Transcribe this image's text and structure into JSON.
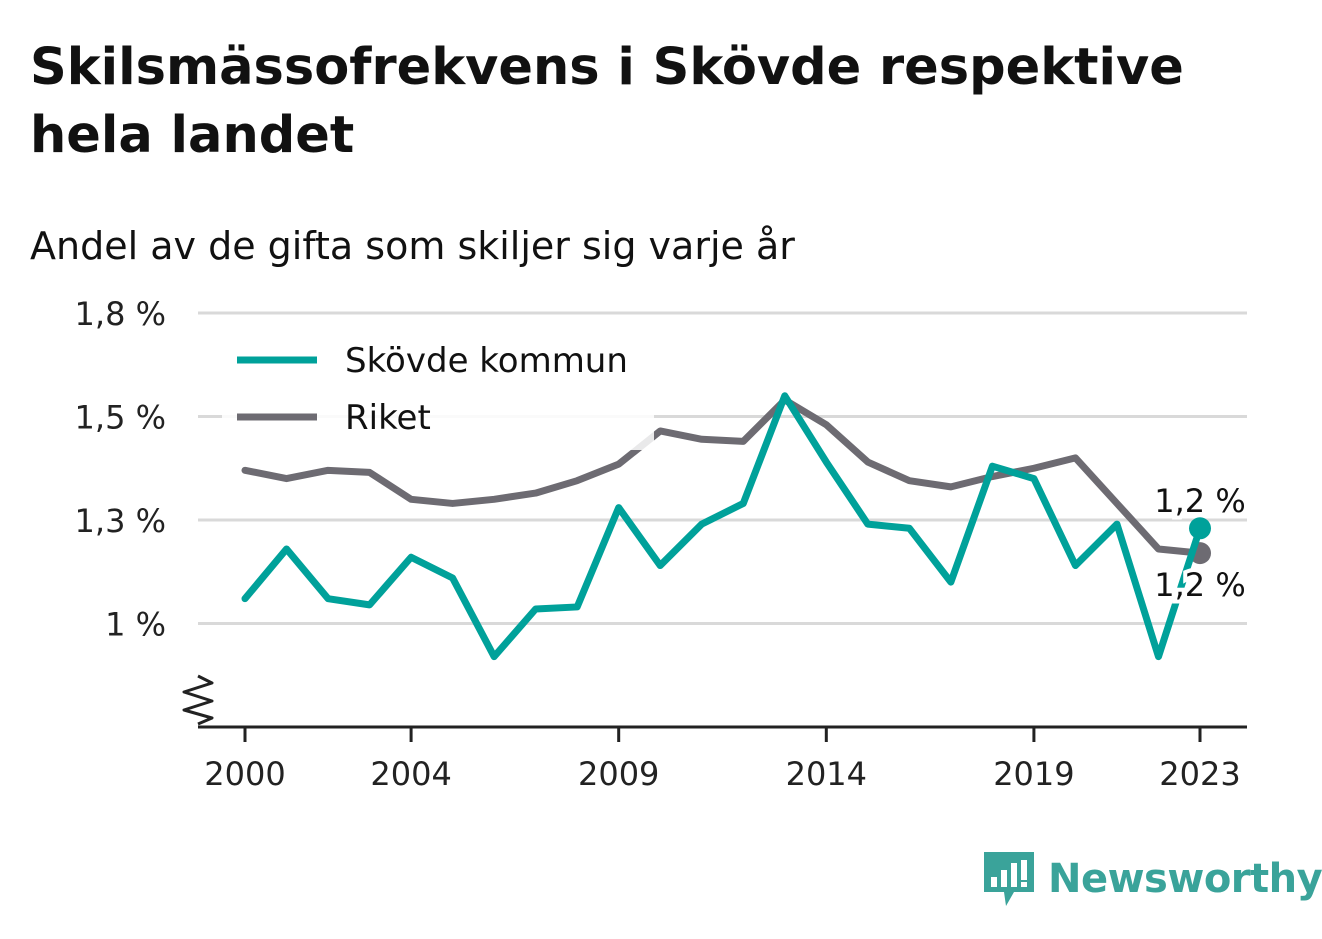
{
  "header": {
    "title": "Skilsmässofrekvens i Skövde respektive hela landet",
    "subtitle": "Andel av de gifta som skiljer sig varje år"
  },
  "brand": {
    "name": "Newsworthy",
    "logo_icon": "bar-chart-icon"
  },
  "colors": {
    "skovde": "#00a19a",
    "riket": "#6d6b72",
    "grid": "#d9d9d9",
    "axis": "#222222"
  },
  "chart_data": {
    "type": "line",
    "title": "Skilsmässofrekvens i Skövde respektive hela landet",
    "subtitle": "Andel av de gifta som skiljer sig varje år",
    "xlabel": "",
    "ylabel": "",
    "x": [
      2000,
      2001,
      2002,
      2003,
      2004,
      2005,
      2006,
      2007,
      2008,
      2009,
      2010,
      2011,
      2012,
      2013,
      2014,
      2015,
      2016,
      2017,
      2018,
      2019,
      2020,
      2021,
      2022,
      2023
    ],
    "x_ticks": [
      2000,
      2004,
      2009,
      2014,
      2019,
      2023
    ],
    "x_tick_labels": [
      "2000",
      "2004",
      "2009",
      "2014",
      "2019",
      "2023"
    ],
    "y_ticks": [
      1.0,
      1.25,
      1.5,
      1.75
    ],
    "y_tick_labels": [
      "1 %",
      "1,3 %",
      "1,5 %",
      "1,8 %"
    ],
    "ylim": [
      0.75,
      1.75
    ],
    "y_axis_break": true,
    "grid": true,
    "legend_position": "top-left",
    "series": [
      {
        "name": "Skövde kommun",
        "color": "#00a19a",
        "values": [
          1.06,
          1.18,
          1.06,
          1.045,
          1.16,
          1.11,
          0.92,
          1.035,
          1.04,
          1.28,
          1.14,
          1.24,
          1.29,
          1.55,
          1.39,
          1.24,
          1.23,
          1.1,
          1.38,
          1.35,
          1.14,
          1.24,
          0.92,
          1.23
        ],
        "end_label": "1,2 %"
      },
      {
        "name": "Riket",
        "color": "#6d6b72",
        "values": [
          1.37,
          1.35,
          1.37,
          1.365,
          1.3,
          1.29,
          1.3,
          1.315,
          1.345,
          1.385,
          1.465,
          1.445,
          1.44,
          1.54,
          1.48,
          1.39,
          1.345,
          1.33,
          1.355,
          1.375,
          1.4,
          1.29,
          1.18,
          1.17
        ],
        "end_label": "1,2 %"
      }
    ]
  }
}
